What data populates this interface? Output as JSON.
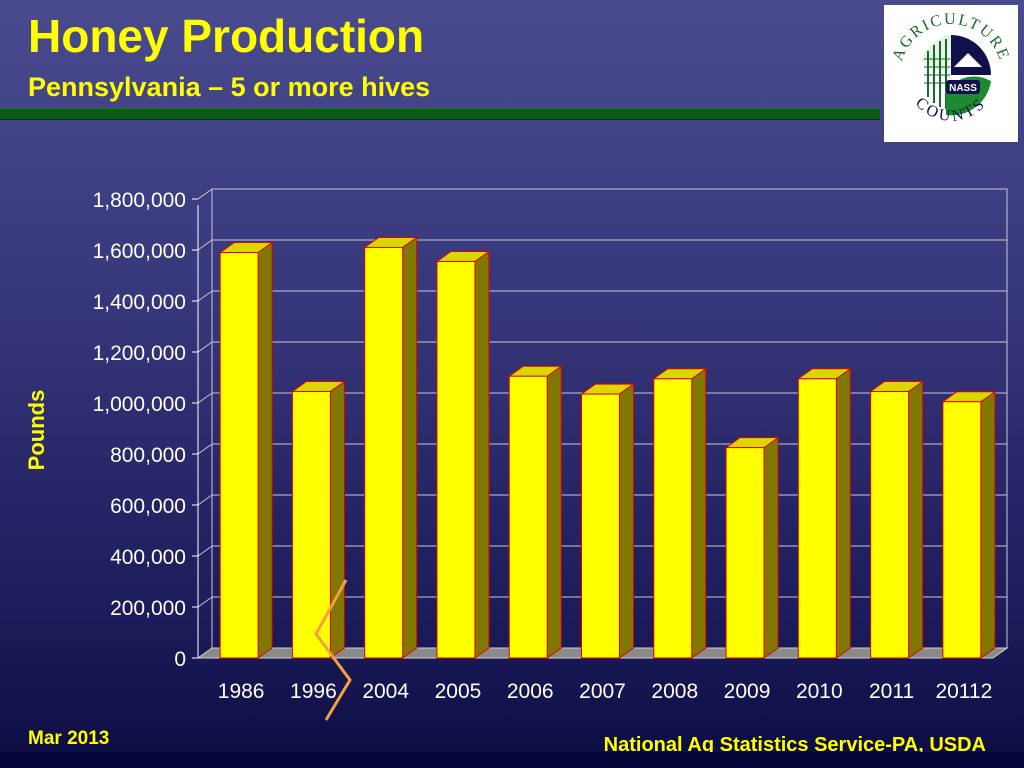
{
  "slide": {
    "title": "Honey Production",
    "subtitle": "Pennsylvania – 5 or more hives",
    "footer_left": "Mar 2013",
    "footer_right": "National Ag Statistics Service-PA, USDA"
  },
  "logo": {
    "top_text": "AGRICULTURE",
    "bottom_text": "COUNTS",
    "badge_text": "NASS",
    "icon": "usda-nass-agriculture-counts-logo"
  },
  "colors": {
    "title": "#ffff00",
    "bar_front": "#ffff00",
    "bar_side": "#807800",
    "bar_outline": "#e00000",
    "axis_text": "#ffffff",
    "break_mark": "#f4a040"
  },
  "chart_data": {
    "type": "bar",
    "title": "",
    "xlabel": "",
    "ylabel": "Pounds",
    "categories": [
      "1986",
      "1996",
      "2004",
      "2005",
      "2006",
      "2007",
      "2008",
      "2009",
      "2010",
      "2011",
      "20112"
    ],
    "values": [
      1590000,
      1045000,
      1610000,
      1555000,
      1105000,
      1035000,
      1095000,
      825000,
      1095000,
      1045000,
      1005000
    ],
    "ylim": [
      0,
      1800000
    ],
    "yticks": [
      "0",
      "200,000",
      "400,000",
      "600,000",
      "800,000",
      "1,000,000",
      "1,200,000",
      "1,400,000",
      "1,600,000",
      "1,800,000"
    ],
    "grid": true,
    "legend": "none",
    "axis_break_after_category": "1996"
  }
}
